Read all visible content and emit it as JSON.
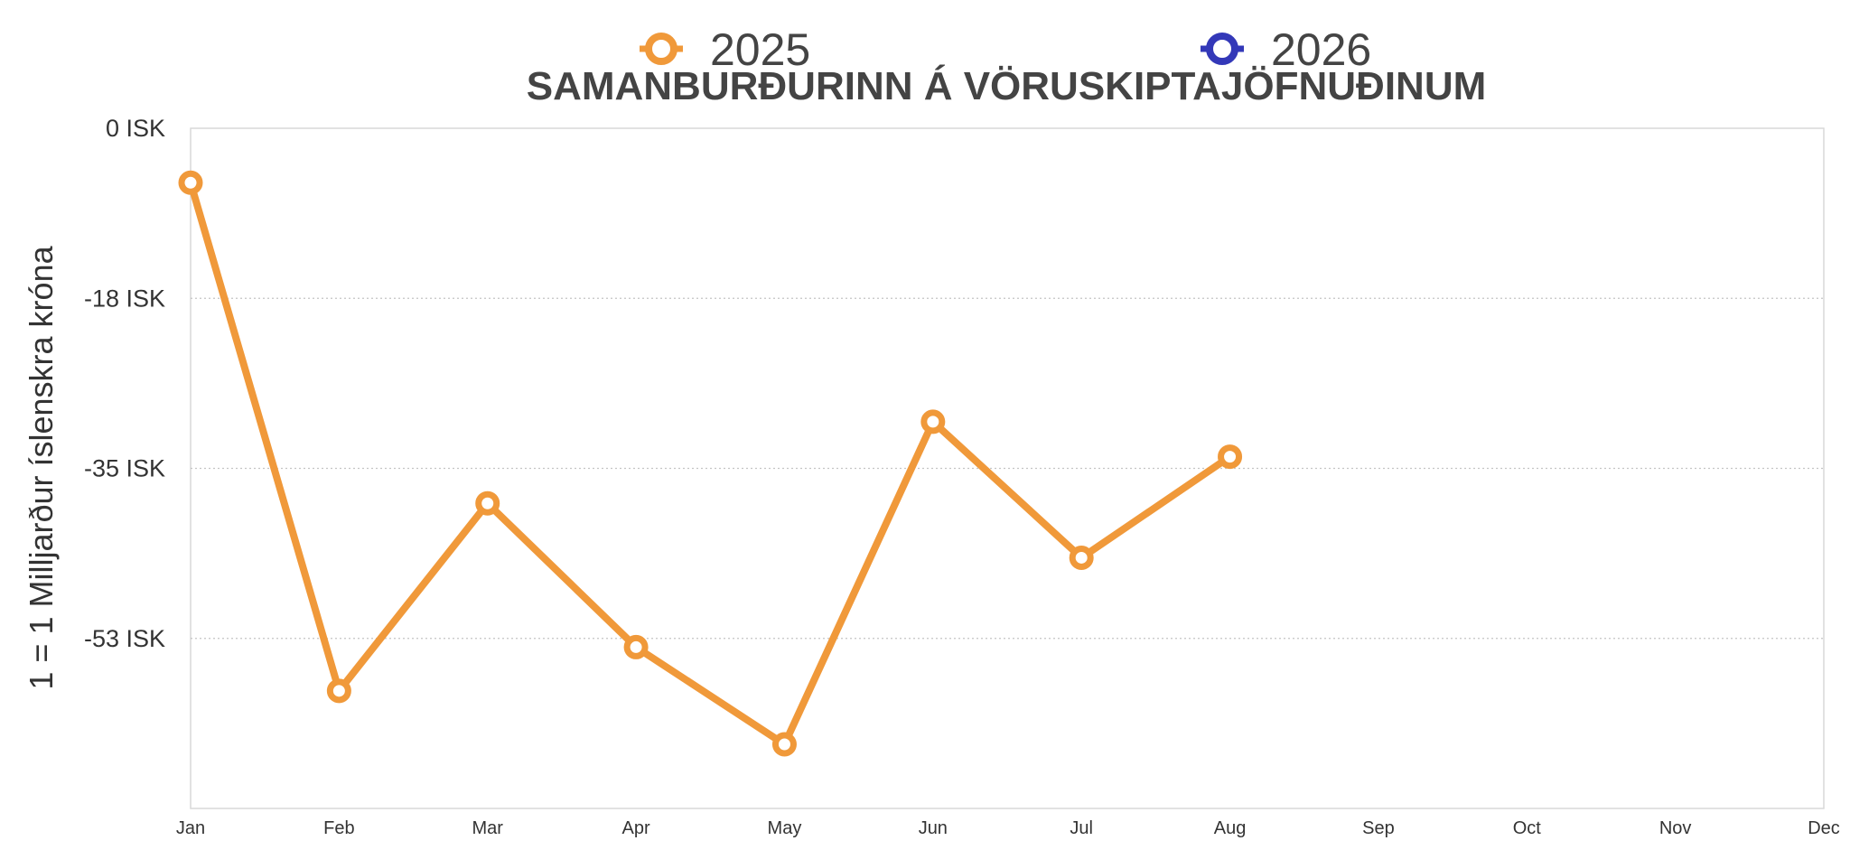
{
  "chart_data": {
    "type": "line",
    "title": "SAMANBURÐURINN Á VÖRUSKIPTAJÖFNUÐINUM",
    "ylabel": "1 = 1 Milljarður íslenskra króna",
    "xlabel": "",
    "categories": [
      "Jan",
      "Feb",
      "Mar",
      "Apr",
      "May",
      "Jun",
      "Jul",
      "Aug",
      "Sep",
      "Oct",
      "Nov",
      "Dec"
    ],
    "ylim": [
      -70,
      0
    ],
    "yticks": [
      {
        "value": 0,
        "label": "0 ISK"
      },
      {
        "value": -17.5,
        "label": "-18 ISK"
      },
      {
        "value": -35,
        "label": "-35 ISK"
      },
      {
        "value": -52.5,
        "label": "-53 ISK"
      }
    ],
    "grid": "horizontal dotted",
    "legend_position": "top",
    "series": [
      {
        "name": "2025",
        "color": "#F0993A",
        "values": [
          -5.6,
          -57.9,
          -38.6,
          -53.4,
          -63.4,
          -30.2,
          -44.2,
          -33.8,
          null,
          null,
          null,
          null
        ]
      },
      {
        "name": "2026",
        "color": "#3338B8",
        "values": [
          null,
          null,
          null,
          null,
          null,
          null,
          null,
          null,
          null,
          null,
          null,
          null
        ]
      }
    ]
  }
}
